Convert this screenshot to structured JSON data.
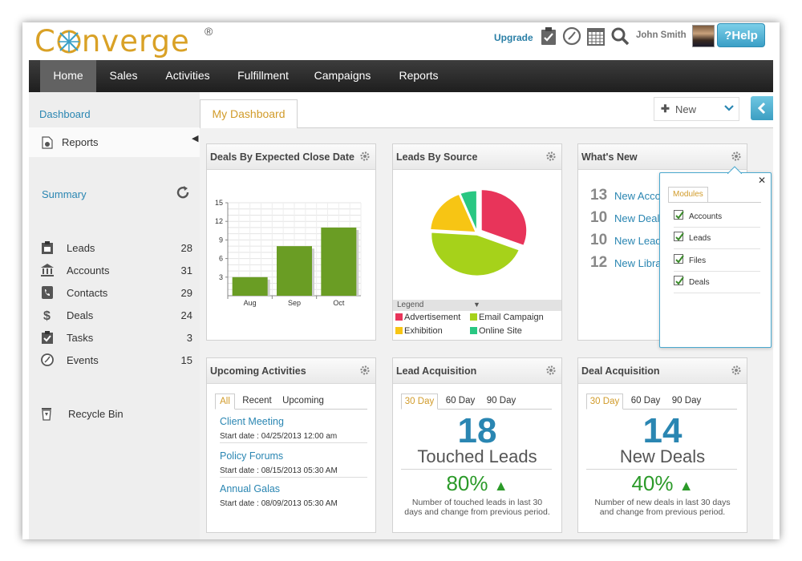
{
  "header": {
    "logo_text": "Converge",
    "logo_reg": "®",
    "upgrade": "Upgrade",
    "username": "John Smith",
    "help": "?Help"
  },
  "nav": {
    "items": [
      "Home",
      "Sales",
      "Activities",
      "Fulfillment",
      "Campaigns",
      "Reports"
    ],
    "active": "Home"
  },
  "sidebar": {
    "dashboard": "Dashboard",
    "reports": "Reports",
    "summary_title": "Summary",
    "summary": [
      {
        "label": "Leads",
        "count": "28",
        "icon": "clipboard-icon"
      },
      {
        "label": "Accounts",
        "count": "31",
        "icon": "bank-icon"
      },
      {
        "label": "Contacts",
        "count": "29",
        "icon": "phone-book-icon"
      },
      {
        "label": "Deals",
        "count": "24",
        "icon": "dollar-icon"
      },
      {
        "label": "Tasks",
        "count": "3",
        "icon": "task-clipboard-icon"
      },
      {
        "label": "Events",
        "count": "15",
        "icon": "clock-icon"
      }
    ],
    "recycle": "Recycle Bin"
  },
  "main": {
    "tab": "My Dashboard",
    "new_button": "New"
  },
  "widgets": {
    "deals": {
      "title": "Deals By Expected Close Date"
    },
    "leads_source": {
      "title": "Leads By Source",
      "legend_label": "Legend"
    },
    "whats_new": {
      "title": "What's New",
      "rows": [
        {
          "num": "13",
          "link": "New Acco"
        },
        {
          "num": "10",
          "link": "New Deal"
        },
        {
          "num": "10",
          "link": "New Lead"
        },
        {
          "num": "12",
          "link": "New Libra"
        }
      ]
    },
    "popup": {
      "tab": "Modules",
      "items": [
        "Accounts",
        "Leads",
        "Files",
        "Deals"
      ]
    },
    "upcoming": {
      "title": "Upcoming Activities",
      "tabs": [
        "All",
        "Recent",
        "Upcoming"
      ],
      "items": [
        {
          "title": "Client Meeting",
          "date": "Start date : 04/25/2013 12:00 am"
        },
        {
          "title": "Policy Forums",
          "date": "Start date : 08/15/2013 05:30 AM"
        },
        {
          "title": "Annual Galas",
          "date": "Start date : 08/09/2013 05:30 AM"
        }
      ]
    },
    "lead_acq": {
      "title": "Lead Acquisition",
      "tabs": [
        "30 Day",
        "60 Day",
        "90 Day"
      ],
      "number": "18",
      "label": "Touched Leads",
      "pct": "80%",
      "desc": "Number of touched leads in last 30 days and change from previous period."
    },
    "deal_acq": {
      "title": "Deal Acquisition",
      "tabs": [
        "30 Day",
        "60 Day",
        "90 Day"
      ],
      "number": "14",
      "label": "New Deals",
      "pct": "40%",
      "desc": "Number of new deals in last 30 days and change from previous period."
    }
  },
  "chart_data": [
    {
      "type": "bar",
      "title": "Deals By Expected Close Date",
      "categories": [
        "Aug",
        "Sep",
        "Oct"
      ],
      "values": [
        3,
        8,
        11
      ],
      "ylim": [
        0,
        15
      ],
      "yticks": [
        3,
        6,
        9,
        12,
        15
      ],
      "color": "#6a9d24"
    },
    {
      "type": "pie",
      "title": "Leads By Source",
      "labels": [
        "Advertisement",
        "Email Campaign",
        "Exhibition",
        "Online Site"
      ],
      "values": [
        31,
        45,
        18,
        6
      ],
      "colors": [
        "#e8345a",
        "#a6d21a",
        "#f7c514",
        "#29c782"
      ]
    }
  ]
}
